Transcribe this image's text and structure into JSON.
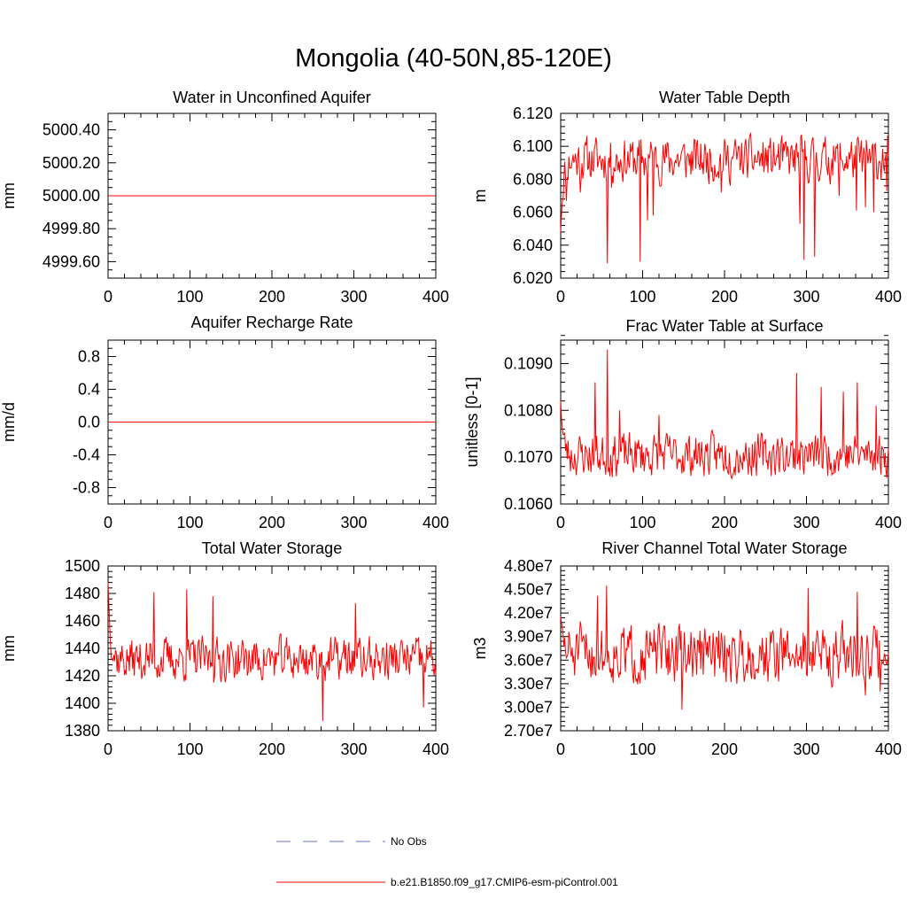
{
  "title": "Mongolia (40-50N,85-120E)",
  "colors": {
    "model": "#ff0000",
    "obs": "#6a72c8",
    "axis": "#000000"
  },
  "legend": {
    "obs_label": "No Obs",
    "model_label": "b.e21.B1850.f09_g17.CMIP6-esm-piControl.001"
  },
  "chart_data": [
    {
      "id": "unconfined-aquifer",
      "type": "line",
      "title": "Water in Unconfined Aquifer",
      "ylabel": "mm",
      "xlim": [
        0,
        400
      ],
      "ylim": [
        4999.5,
        5000.5
      ],
      "xticks": [
        0,
        100,
        200,
        300,
        400
      ],
      "yticks": [
        4999.6,
        4999.8,
        5000.0,
        5000.2,
        5000.4
      ],
      "ytick_labels": [
        "4999.60",
        "4999.80",
        "5000.00",
        "5000.20",
        "5000.40"
      ],
      "yminor": 0.05,
      "series": [
        {
          "name": "b.e21.B1850.f09_g17.CMIP6-esm-piControl.001",
          "constant": 5000.0
        }
      ]
    },
    {
      "id": "water-table-depth",
      "type": "line",
      "title": "Water Table Depth",
      "ylabel": "m",
      "xlim": [
        0,
        400
      ],
      "ylim": [
        6.02,
        6.12
      ],
      "xticks": [
        0,
        100,
        200,
        300,
        400
      ],
      "yticks": [
        6.02,
        6.04,
        6.06,
        6.08,
        6.1,
        6.12
      ],
      "ytick_labels": [
        "6.020",
        "6.040",
        "6.060",
        "6.080",
        "6.100",
        "6.120"
      ],
      "yminor": 0.004,
      "series": [
        {
          "name": "b.e21.B1850.f09_g17.CMIP6-esm-piControl.001",
          "base": 6.092,
          "amp": 0.012,
          "seed": 11,
          "start": 6.048,
          "dips": [
            [
              7,
              6.067
            ],
            [
              24,
              6.072
            ],
            [
              57,
              6.029
            ],
            [
              62,
              6.075
            ],
            [
              97,
              6.03
            ],
            [
              106,
              6.055
            ],
            [
              113,
              6.058
            ],
            [
              196,
              6.072
            ],
            [
              292,
              6.053
            ],
            [
              297,
              6.031
            ],
            [
              310,
              6.033
            ],
            [
              340,
              6.07
            ],
            [
              361,
              6.061
            ],
            [
              372,
              6.063
            ],
            [
              382,
              6.06
            ],
            [
              398,
              6.073
            ]
          ]
        }
      ]
    },
    {
      "id": "aquifer-recharge",
      "type": "line",
      "title": "Aquifer Recharge Rate",
      "ylabel": "mm/d",
      "xlim": [
        0,
        400
      ],
      "ylim": [
        -1.0,
        1.0
      ],
      "xticks": [
        0,
        100,
        200,
        300,
        400
      ],
      "yticks": [
        -0.8,
        -0.4,
        0.0,
        0.4,
        0.8
      ],
      "ytick_labels": [
        "-0.8",
        "-0.4",
        "0.0",
        "0.4",
        "0.8"
      ],
      "yminor": 0.1,
      "series": [
        {
          "name": "b.e21.B1850.f09_g17.CMIP6-esm-piControl.001",
          "constant": 0.0
        }
      ]
    },
    {
      "id": "frac-water-table",
      "type": "line",
      "title": "Frac Water Table at Surface",
      "ylabel": "unitless [0-1]",
      "xlim": [
        0,
        400
      ],
      "ylim": [
        0.106,
        0.1095
      ],
      "xticks": [
        0,
        100,
        200,
        300,
        400
      ],
      "yticks": [
        0.106,
        0.107,
        0.108,
        0.109
      ],
      "ytick_labels": [
        "0.1060",
        "0.1070",
        "0.1080",
        "0.1090"
      ],
      "yminor": 0.0002,
      "series": [
        {
          "name": "b.e21.B1850.f09_g17.CMIP6-esm-piControl.001",
          "base": 0.10705,
          "amp": 0.0004,
          "seed": 23,
          "start": 0.1082,
          "spikes": [
            [
              42,
              0.1086
            ],
            [
              57,
              0.1093
            ],
            [
              72,
              0.108
            ],
            [
              120,
              0.1079
            ],
            [
              288,
              0.1088
            ],
            [
              318,
              0.1085
            ],
            [
              345,
              0.1084
            ],
            [
              362,
              0.1086
            ],
            [
              385,
              0.1081
            ]
          ]
        }
      ]
    },
    {
      "id": "total-water-storage",
      "type": "line",
      "title": "Total Water Storage",
      "ylabel": "mm",
      "xlim": [
        0,
        400
      ],
      "ylim": [
        1380,
        1500
      ],
      "xticks": [
        0,
        100,
        200,
        300,
        400
      ],
      "yticks": [
        1380,
        1400,
        1420,
        1440,
        1460,
        1480,
        1500
      ],
      "ytick_labels": [
        "1380",
        "1400",
        "1420",
        "1440",
        "1460",
        "1480",
        "1500"
      ],
      "yminor": 4,
      "series": [
        {
          "name": "b.e21.B1850.f09_g17.CMIP6-esm-piControl.001",
          "base": 1432,
          "amp": 14,
          "seed": 37,
          "start": 1488,
          "spikes": [
            [
              56,
              1481
            ],
            [
              96,
              1483
            ],
            [
              128,
              1478
            ],
            [
              262,
              1387
            ],
            [
              302,
              1473
            ],
            [
              385,
              1397
            ]
          ]
        }
      ]
    },
    {
      "id": "river-channel-storage",
      "type": "line",
      "title": "River Channel Total Water Storage",
      "ylabel": "m3",
      "xlim": [
        0,
        400
      ],
      "ylim": [
        27000000,
        48000000
      ],
      "xticks": [
        0,
        100,
        200,
        300,
        400
      ],
      "yticks": [
        27000000,
        30000000,
        33000000,
        36000000,
        39000000,
        42000000,
        45000000,
        48000000
      ],
      "ytick_labels": [
        "2.70e7",
        "3.00e7",
        "3.30e7",
        "3.60e7",
        "3.90e7",
        "4.20e7",
        "4.50e7",
        "4.80e7"
      ],
      "yminor": 600000,
      "series": [
        {
          "name": "b.e21.B1850.f09_g17.CMIP6-esm-piControl.001",
          "base": 36800000,
          "amp": 3200000,
          "seed": 51,
          "start": 41500000,
          "spikes": [
            [
              45,
              44200000
            ],
            [
              56,
              45500000
            ],
            [
              148,
              29700000
            ],
            [
              302,
              45200000
            ],
            [
              362,
              44700000
            ],
            [
              372,
              31500000
            ],
            [
              390,
              32000000
            ]
          ]
        }
      ]
    }
  ]
}
